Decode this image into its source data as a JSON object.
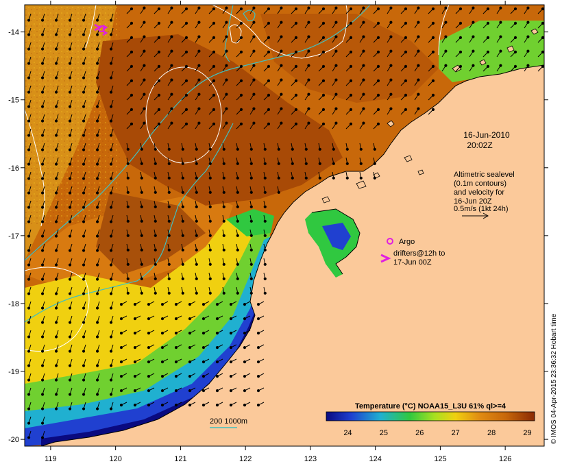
{
  "map": {
    "lon_ticks": [
      "119",
      "120",
      "121",
      "122",
      "123",
      "124",
      "125",
      "126"
    ],
    "lat_ticks": [
      "-14",
      "-15",
      "-16",
      "-17",
      "-18",
      "-19",
      "-20"
    ],
    "lon_range": [
      118.6,
      126.6
    ],
    "lat_range": [
      -13.6,
      -20.1
    ]
  },
  "annotations": {
    "date_line1": "16-Jun-2010",
    "date_line2": "20:02Z",
    "alt_line1": "Altimetric sealevel",
    "alt_line2": "(0.1m contours)",
    "alt_line3": "and velocity for",
    "alt_line4": "16-Jun 20Z",
    "alt_line5": "0.5m/s (1kt 24h)",
    "argo_label": "Argo",
    "drifters_line1": "drifters@12h to",
    "drifters_line2": "17-Jun 00Z",
    "depth_label": "200  1000m",
    "credit": "© IMOS 04-Apr-2015 23:36:32 Hobart time"
  },
  "colorbar": {
    "title": "Temperature (°C) NOAA15_L3U 61% ql>=4",
    "ticks": [
      "24",
      "25",
      "26",
      "27",
      "28",
      "29"
    ],
    "range": [
      23.4,
      29.2
    ]
  },
  "colors": {
    "land": "#fbc99a",
    "warm_core": "#a84a06",
    "warm": "#c8680a",
    "mid_orange": "#e08a12",
    "yellow": "#f0d010",
    "green_yellow": "#a8e020",
    "green": "#30c840",
    "cyan": "#20b0d0",
    "blue": "#2040d0",
    "navy": "#0a0a80",
    "isobath": "#40c0c0",
    "contour": "#ffffff",
    "argo": "#e020e0",
    "drifter": "#e020e0"
  }
}
